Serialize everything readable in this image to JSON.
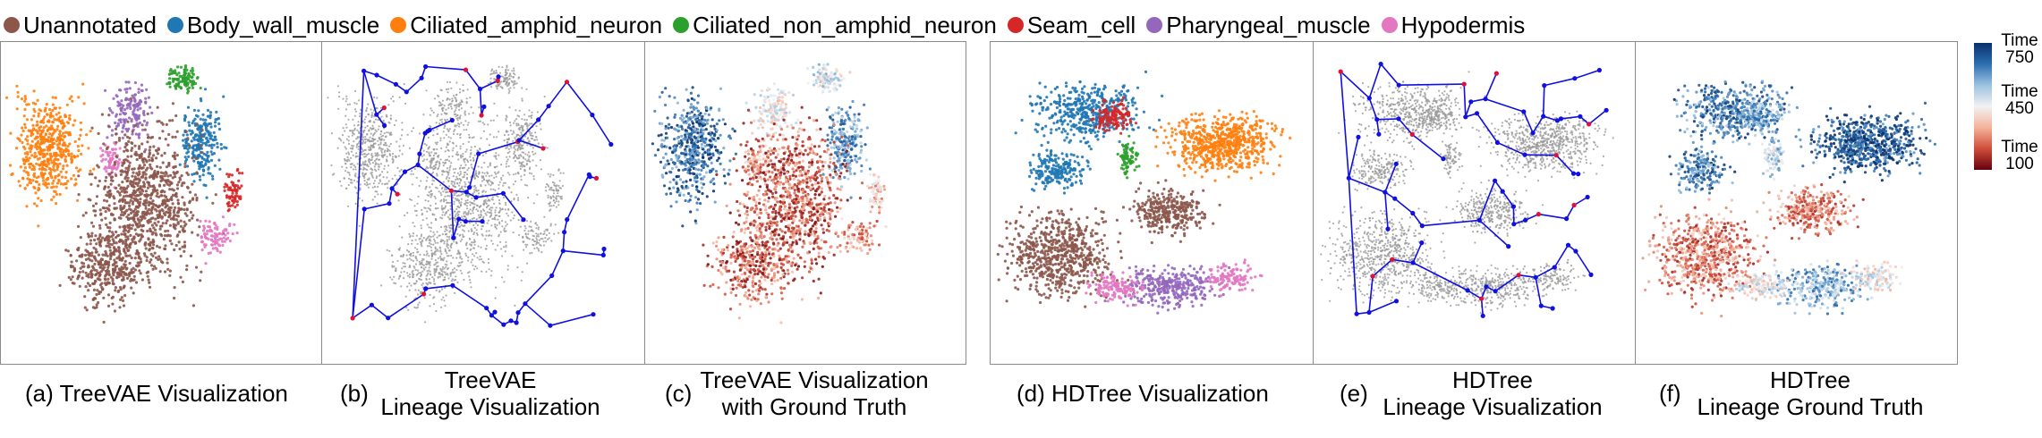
{
  "legend": {
    "items": [
      {
        "label": "Unannotated",
        "color": "#8c564b"
      },
      {
        "label": "Body_wall_muscle",
        "color": "#1f77b4"
      },
      {
        "label": "Ciliated_amphid_neuron",
        "color": "#ff7f0e"
      },
      {
        "label": "Ciliated_non_amphid_neuron",
        "color": "#2ca02c"
      },
      {
        "label": "Seam_cell",
        "color": "#d62728"
      },
      {
        "label": "Pharyngeal_muscle",
        "color": "#9467bd"
      },
      {
        "label": "Hypodermis",
        "color": "#e377c2"
      }
    ]
  },
  "colorbar": {
    "title_top": "Time",
    "tick_top": "750",
    "title_mid": "Time",
    "tick_mid": "450",
    "title_bot": "Time",
    "tick_bot": "100",
    "colormap": "RdBu"
  },
  "chart_data": [
    {
      "type": "scatter",
      "method": "TreeVAE",
      "coloring": "cell type",
      "lineage_overlay": false,
      "axes_visible": false,
      "caption_letter": "(a)",
      "caption": [
        "TreeVAE Visualization"
      ]
    },
    {
      "type": "scatter",
      "method": "TreeVAE",
      "coloring": "gray points with lineage tree",
      "lineage_overlay": true,
      "axes_visible": false,
      "caption_letter": "(b)",
      "caption": [
        "TreeVAE",
        "Lineage Visualization"
      ]
    },
    {
      "type": "scatter",
      "method": "TreeVAE",
      "coloring": "Time",
      "color_range": [
        100,
        750
      ],
      "lineage_overlay": false,
      "axes_visible": false,
      "caption_letter": "(c)",
      "caption": [
        "TreeVAE Visualization",
        "with Ground Truth"
      ]
    },
    {
      "type": "scatter",
      "method": "HDTree",
      "coloring": "cell type",
      "lineage_overlay": false,
      "axes_visible": false,
      "caption_letter": "(d)",
      "caption": [
        "HDTree Visualization"
      ]
    },
    {
      "type": "scatter",
      "method": "HDTree",
      "coloring": "gray points with lineage tree",
      "lineage_overlay": true,
      "axes_visible": false,
      "caption_letter": "(e)",
      "caption": [
        "HDTree",
        "Lineage Visualization"
      ]
    },
    {
      "type": "scatter",
      "method": "HDTree",
      "coloring": "Time",
      "color_range": [
        100,
        750
      ],
      "lineage_overlay": false,
      "axes_visible": false,
      "caption_letter": "(f)",
      "caption": [
        "HDTree",
        "Lineage Ground Truth"
      ]
    }
  ]
}
